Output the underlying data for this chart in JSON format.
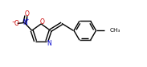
{
  "background_color": "#ffffff",
  "bond_color": "#000000",
  "figsize": [
    1.83,
    0.84
  ],
  "dpi": 100,
  "xlim": [
    0,
    10
  ],
  "ylim": [
    0,
    5
  ],
  "ring_O_color": "#cc0000",
  "ring_N_color": "#0000cc",
  "nitro_N_color": "#0000cc",
  "nitro_O_color": "#cc0000"
}
